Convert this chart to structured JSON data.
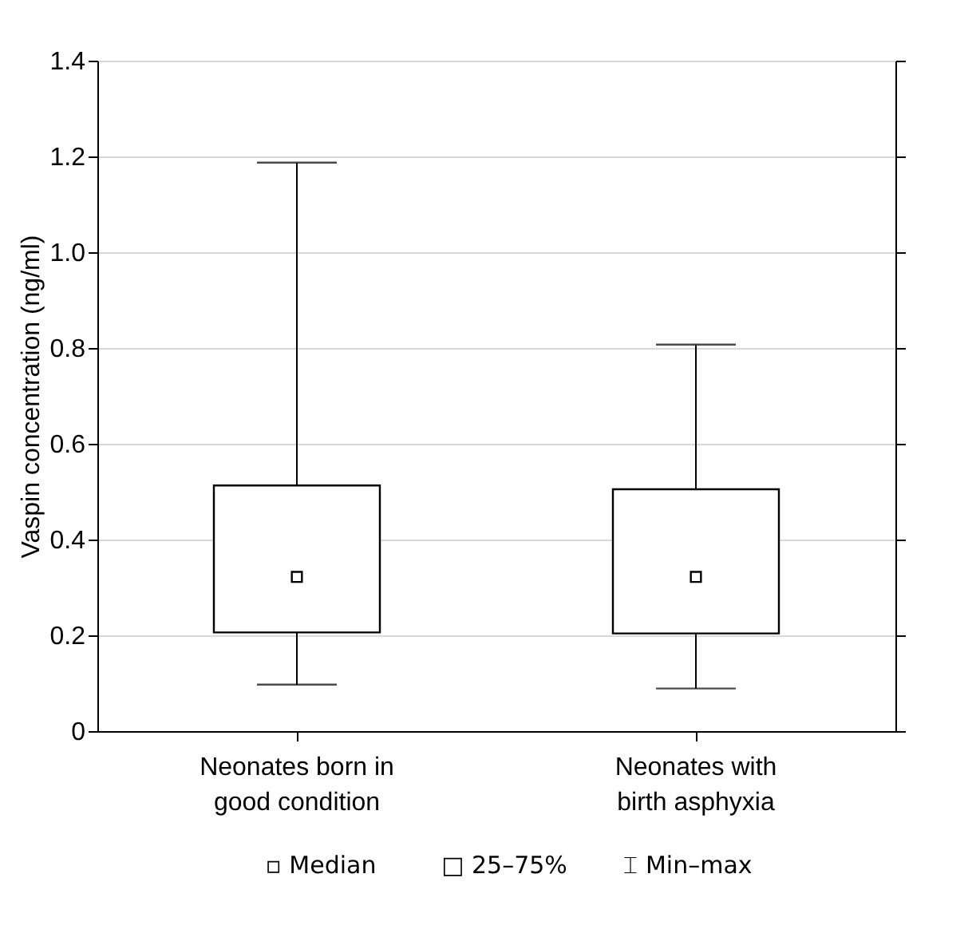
{
  "chart_data": {
    "type": "box",
    "ylabel": "Vaspin concentration (ng/ml)",
    "categories": [
      "Neonates born in good condition",
      "Neonates with birth asphyxia"
    ],
    "boxes": [
      {
        "low": 0.097,
        "q1": 0.206,
        "median": 0.322,
        "q3": 0.513,
        "high": 1.187
      },
      {
        "low": 0.089,
        "q1": 0.204,
        "median": 0.322,
        "q3": 0.505,
        "high": 0.807
      }
    ],
    "ylim": [
      0,
      1.4
    ],
    "yticks": [
      0,
      0.2,
      0.4,
      0.6,
      0.8,
      {
        "value": 1.0,
        "label": "1.0"
      },
      1.2,
      1.4
    ],
    "grid": "y",
    "annotations": [
      "▫ Median",
      "□ 25–75%",
      "⌶ Min–max"
    ]
  }
}
